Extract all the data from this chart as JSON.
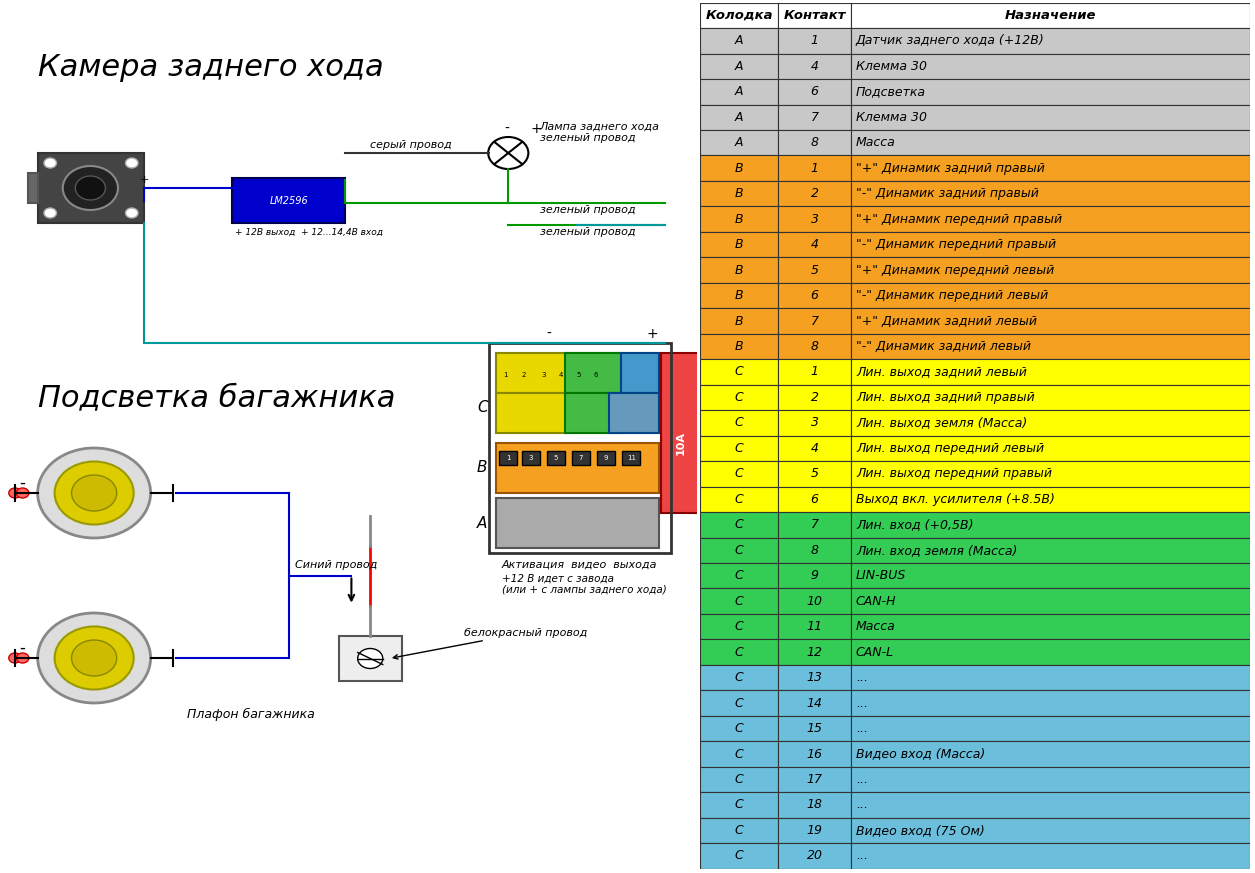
{
  "background_color": "#ffffff",
  "header": [
    "Колодка",
    "Контакт",
    "Назначение"
  ],
  "rows": [
    [
      "A",
      "1",
      "Датчик заднего хода (+12В)",
      "#c8c8c8"
    ],
    [
      "A",
      "4",
      "Клемма 30",
      "#c8c8c8"
    ],
    [
      "A",
      "6",
      "Подсветка",
      "#c8c8c8"
    ],
    [
      "A",
      "7",
      "Клемма 30",
      "#c8c8c8"
    ],
    [
      "A",
      "8",
      "Масса",
      "#c8c8c8"
    ],
    [
      "B",
      "1",
      "\"+\" Динамик задний правый",
      "#f5a020"
    ],
    [
      "B",
      "2",
      "\"-\" Динамик задний правый",
      "#f5a020"
    ],
    [
      "B",
      "3",
      "\"+\" Динамик передний правый",
      "#f5a020"
    ],
    [
      "B",
      "4",
      "\"-\" Динамик передний правый",
      "#f5a020"
    ],
    [
      "B",
      "5",
      "\"+\" Динамик передний левый",
      "#f5a020"
    ],
    [
      "B",
      "6",
      "\"-\" Динамик передний левый",
      "#f5a020"
    ],
    [
      "B",
      "7",
      "\"+\" Динамик задний левый",
      "#f5a020"
    ],
    [
      "B",
      "8",
      "\"-\" Динамик задний левый",
      "#f5a020"
    ],
    [
      "C",
      "1",
      "Лин. выход задний левый",
      "#ffff00"
    ],
    [
      "C",
      "2",
      "Лин. выход задний правый",
      "#ffff00"
    ],
    [
      "C",
      "3",
      "Лин. выход земля (Масса)",
      "#ffff00"
    ],
    [
      "C",
      "4",
      "Лин. выход передний левый",
      "#ffff00"
    ],
    [
      "C",
      "5",
      "Лин. выход передний правый",
      "#ffff00"
    ],
    [
      "C",
      "6",
      "Выход вкл. усилителя (+8.5В)",
      "#ffff00"
    ],
    [
      "C",
      "7",
      "Лин. вход (+0,5В)",
      "#33cc55"
    ],
    [
      "C",
      "8",
      "Лин. вход земля (Масса)",
      "#33cc55"
    ],
    [
      "C",
      "9",
      "LIN-BUS",
      "#33cc55"
    ],
    [
      "C",
      "10",
      "CAN-H",
      "#33cc55"
    ],
    [
      "C",
      "11",
      "Масса",
      "#33cc55"
    ],
    [
      "C",
      "12",
      "CAN-L",
      "#33cc55"
    ],
    [
      "C",
      "13",
      "...",
      "#6bbfdd"
    ],
    [
      "C",
      "14",
      "...",
      "#6bbfdd"
    ],
    [
      "C",
      "15",
      "...",
      "#6bbfdd"
    ],
    [
      "C",
      "16",
      "Видео вход (Масса)",
      "#6bbfdd"
    ],
    [
      "C",
      "17",
      "...",
      "#6bbfdd"
    ],
    [
      "C",
      "18",
      "...",
      "#6bbfdd"
    ],
    [
      "C",
      "19",
      "Видео вход (75 Ом)",
      "#6bbfdd"
    ],
    [
      "C",
      "20",
      "...",
      "#6bbfdd"
    ]
  ],
  "title1": "Камера заднего хода",
  "title2": "Подсветка багажника",
  "title3": "Плафон багажника",
  "wire_labels": {
    "grey": "серый провод",
    "green1": "зеленый провод",
    "green2": "зеленый провод",
    "blue": "Синий провод",
    "white_red": "белокрасный провод",
    "lamp_label": "Лампа заднего хода\nзеленый провод",
    "lm_label": "LM2596",
    "v12_out": "+ 12В выход",
    "v12_in": "+ 12...14,4В вход",
    "activation": "Активация  видео  выхода",
    "plus12": "+12 В идет с завода\n(или + с лампы заднего хода)"
  },
  "connector_labels": {
    "A": "A",
    "B": "B",
    "C": "C"
  },
  "connector_colors": {
    "C_yellow": "#e8d800",
    "C_green": "#44bb44",
    "C_blue": "#4499cc",
    "C_teal": "#44aaaa",
    "B_orange": "#f5a020",
    "A_grey": "#aaaaaa",
    "fuse_red": "#ee4444"
  }
}
